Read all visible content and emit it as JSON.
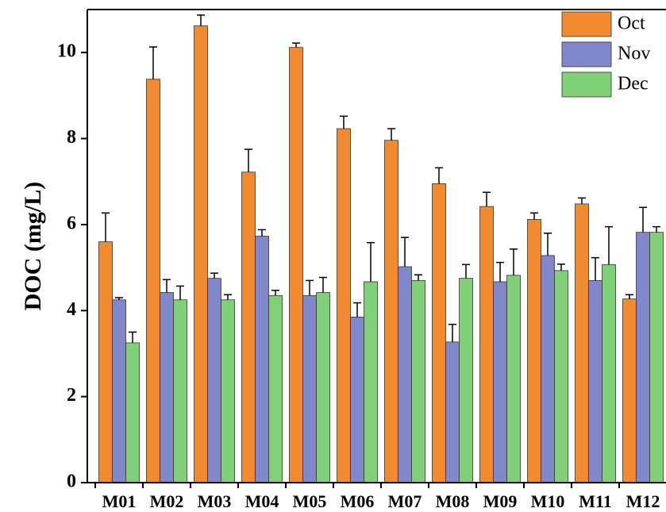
{
  "chart_data": {
    "type": "bar",
    "y_label": "DOC (mg/L)",
    "categories": [
      "M01",
      "M02",
      "M03",
      "M04",
      "M05",
      "M06",
      "M07",
      "M08",
      "M09",
      "M10",
      "M11",
      "M12"
    ],
    "series": [
      {
        "name": "Oct",
        "color": "#f28b30",
        "values": [
          5.6,
          9.38,
          10.62,
          7.22,
          10.12,
          8.23,
          7.96,
          6.95,
          6.42,
          6.12,
          6.48,
          4.27
        ],
        "errors": [
          0.67,
          0.75,
          0.25,
          0.53,
          0.1,
          0.29,
          0.27,
          0.37,
          0.33,
          0.15,
          0.14,
          0.1
        ]
      },
      {
        "name": "Nov",
        "color": "#8087ca",
        "values": [
          4.25,
          4.42,
          4.75,
          5.73,
          4.35,
          3.85,
          5.02,
          3.27,
          4.67,
          5.28,
          4.7,
          5.82
        ],
        "errors": [
          0.05,
          0.3,
          0.12,
          0.15,
          0.35,
          0.33,
          0.68,
          0.41,
          0.45,
          0.52,
          0.53,
          0.58
        ]
      },
      {
        "name": "Dec",
        "color": "#80d077",
        "values": [
          3.25,
          4.25,
          4.25,
          4.35,
          4.42,
          4.67,
          4.7,
          4.75,
          4.82,
          4.93,
          5.07,
          5.82
        ],
        "errors": [
          0.25,
          0.32,
          0.12,
          0.12,
          0.35,
          0.91,
          0.13,
          0.32,
          0.61,
          0.15,
          0.88,
          0.13
        ]
      }
    ],
    "ylim": [
      0,
      11
    ],
    "yticks": [
      0,
      2,
      4,
      6,
      8,
      10
    ],
    "legend": "top-right"
  }
}
